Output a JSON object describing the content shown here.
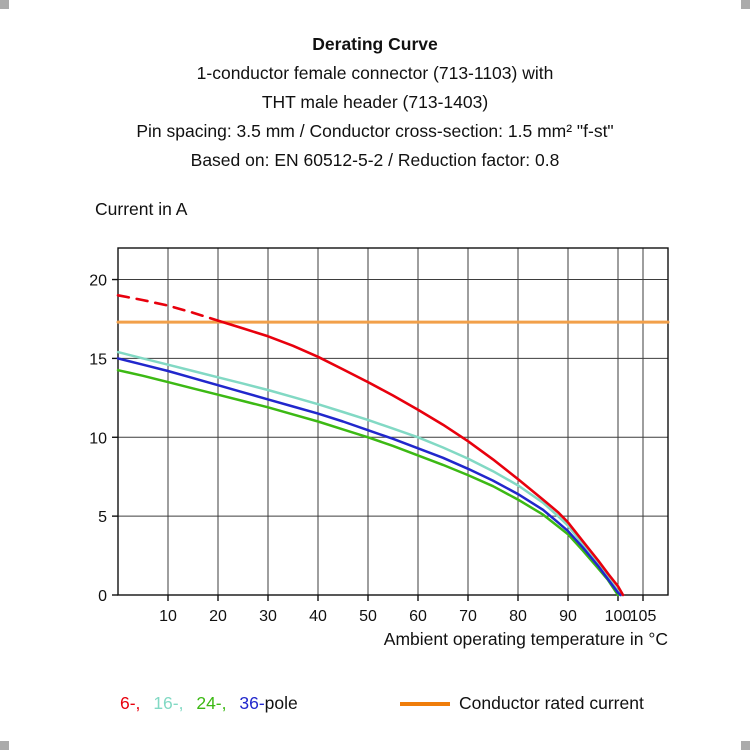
{
  "header": {
    "title": "Derating Curve",
    "lines": [
      "1-conductor female connector (713-1103) with",
      "THT male header (713-1403)",
      "Pin spacing: 3.5 mm / Conductor cross-section: 1.5 mm² \"f-st\"",
      "Based on: EN 60512-5-2 / Reduction factor: 0.8"
    ]
  },
  "chart_data": {
    "type": "line",
    "title": "Derating Curve",
    "xlabel": "Ambient operating temperature in °C",
    "ylabel": "Current in A",
    "xlim": [
      0,
      110
    ],
    "ylim": [
      0,
      22
    ],
    "xticks": [
      10,
      20,
      30,
      40,
      50,
      60,
      70,
      80,
      90,
      100,
      105
    ],
    "yticks": [
      0,
      5,
      10,
      15,
      20
    ],
    "grid": true,
    "grid_color": "#3d3d3d",
    "axis_color": "#111111",
    "legend_position": "bottom",
    "series": [
      {
        "name": "Conductor rated current",
        "color": "#f2a04a",
        "width": 3,
        "dash": null,
        "points": [
          [
            0,
            17.3
          ],
          [
            110,
            17.3
          ]
        ]
      },
      {
        "name": "16-pole",
        "color": "#82d9c4",
        "width": 2.5,
        "dash": null,
        "points": [
          [
            0,
            15.4
          ],
          [
            5,
            15.0
          ],
          [
            10,
            14.6
          ],
          [
            15,
            14.2
          ],
          [
            20,
            13.8
          ],
          [
            25,
            13.4
          ],
          [
            30,
            13.0
          ],
          [
            35,
            12.55
          ],
          [
            40,
            12.1
          ],
          [
            45,
            11.6
          ],
          [
            50,
            11.1
          ],
          [
            55,
            10.55
          ],
          [
            60,
            10.0
          ],
          [
            65,
            9.35
          ],
          [
            70,
            8.65
          ],
          [
            75,
            7.85
          ],
          [
            80,
            6.95
          ],
          [
            85,
            5.85
          ],
          [
            88,
            5.0
          ],
          [
            90,
            4.4
          ],
          [
            93,
            3.2
          ],
          [
            96,
            1.95
          ],
          [
            98,
            1.1
          ],
          [
            100,
            0.25
          ],
          [
            100.7,
            0
          ]
        ]
      },
      {
        "name": "24-pole",
        "color": "#3cb914",
        "width": 2.5,
        "dash": null,
        "points": [
          [
            0,
            14.25
          ],
          [
            5,
            13.9
          ],
          [
            10,
            13.5
          ],
          [
            15,
            13.1
          ],
          [
            20,
            12.7
          ],
          [
            25,
            12.3
          ],
          [
            30,
            11.9
          ],
          [
            35,
            11.45
          ],
          [
            40,
            11.0
          ],
          [
            45,
            10.5
          ],
          [
            50,
            10.0
          ],
          [
            55,
            9.45
          ],
          [
            60,
            8.85
          ],
          [
            65,
            8.25
          ],
          [
            70,
            7.6
          ],
          [
            75,
            6.9
          ],
          [
            80,
            6.05
          ],
          [
            85,
            5.1
          ],
          [
            88,
            4.35
          ],
          [
            90,
            3.85
          ],
          [
            93,
            2.8
          ],
          [
            96,
            1.7
          ],
          [
            98,
            0.95
          ],
          [
            100,
            0
          ]
        ]
      },
      {
        "name": "36-pole",
        "color": "#2127cc",
        "width": 2.5,
        "dash": null,
        "points": [
          [
            0,
            15.0
          ],
          [
            5,
            14.6
          ],
          [
            10,
            14.2
          ],
          [
            15,
            13.75
          ],
          [
            20,
            13.3
          ],
          [
            25,
            12.85
          ],
          [
            30,
            12.4
          ],
          [
            35,
            11.95
          ],
          [
            40,
            11.5
          ],
          [
            45,
            11.0
          ],
          [
            50,
            10.45
          ],
          [
            55,
            9.9
          ],
          [
            60,
            9.3
          ],
          [
            65,
            8.7
          ],
          [
            70,
            8.0
          ],
          [
            75,
            7.25
          ],
          [
            80,
            6.4
          ],
          [
            85,
            5.4
          ],
          [
            88,
            4.6
          ],
          [
            90,
            4.05
          ],
          [
            93,
            3.0
          ],
          [
            96,
            1.85
          ],
          [
            98,
            1.0
          ],
          [
            100,
            0.15
          ],
          [
            100.5,
            0
          ]
        ]
      },
      {
        "name": "6-pole (dashed, above rated current)",
        "color": "#e8000d",
        "width": 2.6,
        "dash": "11 8",
        "points": [
          [
            0,
            19.0
          ],
          [
            5,
            18.7
          ],
          [
            10,
            18.35
          ],
          [
            15,
            17.9
          ],
          [
            20,
            17.4
          ]
        ]
      },
      {
        "name": "6-pole",
        "color": "#e8000d",
        "width": 2.6,
        "dash": null,
        "points": [
          [
            20,
            17.4
          ],
          [
            25,
            16.9
          ],
          [
            30,
            16.4
          ],
          [
            35,
            15.8
          ],
          [
            40,
            15.1
          ],
          [
            45,
            14.3
          ],
          [
            50,
            13.5
          ],
          [
            55,
            12.65
          ],
          [
            60,
            11.75
          ],
          [
            65,
            10.8
          ],
          [
            70,
            9.75
          ],
          [
            75,
            8.6
          ],
          [
            80,
            7.35
          ],
          [
            85,
            6.05
          ],
          [
            88,
            5.25
          ],
          [
            90,
            4.6
          ],
          [
            93,
            3.4
          ],
          [
            96,
            2.2
          ],
          [
            98,
            1.35
          ],
          [
            100,
            0.55
          ],
          [
            101,
            0
          ]
        ]
      }
    ]
  },
  "legend": {
    "pole_items": [
      {
        "label": "6-,",
        "color": "#e8000d"
      },
      {
        "label": "16-,",
        "color": "#82d9c4"
      },
      {
        "label": "24-,",
        "color": "#3cb914"
      },
      {
        "label": "36-",
        "color": "#2127cc"
      }
    ],
    "pole_suffix": "pole",
    "rated": {
      "label": "Conductor rated current",
      "color": "#ef7d0a"
    }
  }
}
